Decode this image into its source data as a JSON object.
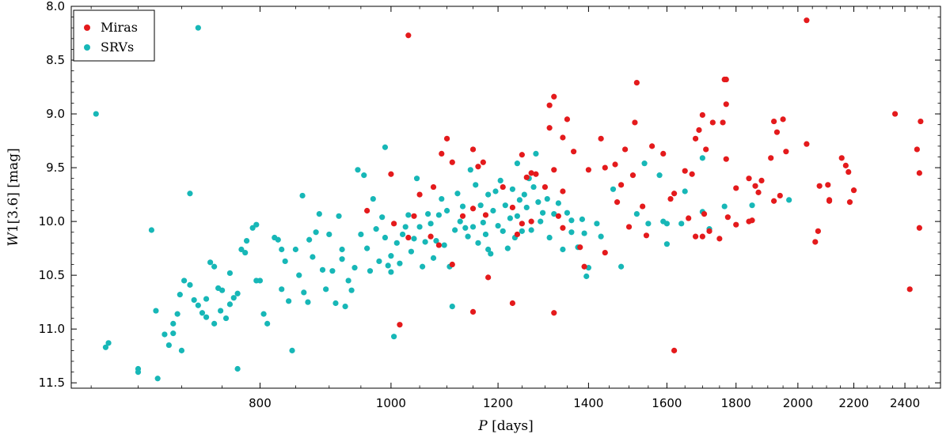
{
  "chart_data": {
    "type": "scatter",
    "x_scale": "log",
    "y_inverted": true,
    "xlim": [
      580,
      2550
    ],
    "ylim": [
      11.55,
      8.0
    ],
    "x_ticks": [
      800,
      1000,
      1200,
      1400,
      1600,
      1800,
      2000,
      2200,
      2400
    ],
    "y_ticks": [
      8.0,
      8.5,
      9.0,
      9.5,
      10.0,
      10.5,
      11.0,
      11.5
    ],
    "xlabel_italic": "P",
    "xlabel_rest": " [days]",
    "ylabel_italic": "W",
    "ylabel_rest": "1[3.6] [mag]",
    "legend": "top-left",
    "grid": false,
    "series": [
      {
        "name": "Miras",
        "color": "#e41a1c",
        "points": [
          [
            1030,
            8.27
          ],
          [
            2030,
            8.13
          ],
          [
            1520,
            8.71
          ],
          [
            1765,
            8.68
          ],
          [
            2360,
            9.0
          ],
          [
            2465,
            9.07
          ],
          [
            2450,
            9.33
          ],
          [
            2460,
            9.55
          ],
          [
            2460,
            10.06
          ],
          [
            2420,
            10.63
          ],
          [
            1310,
            8.92
          ],
          [
            1320,
            8.84
          ],
          [
            1310,
            9.13
          ],
          [
            1350,
            9.05
          ],
          [
            1340,
            9.22
          ],
          [
            1365,
            9.35
          ],
          [
            1320,
            9.52
          ],
          [
            1300,
            9.68
          ],
          [
            1330,
            9.95
          ],
          [
            1340,
            10.06
          ],
          [
            1260,
            9.59
          ],
          [
            1270,
            9.55
          ],
          [
            1250,
            9.38
          ],
          [
            1280,
            9.56
          ],
          [
            1240,
            10.12
          ],
          [
            1230,
            9.87
          ],
          [
            1250,
            10.02
          ],
          [
            1270,
            10.0
          ],
          [
            1210,
            9.68
          ],
          [
            1170,
            9.45
          ],
          [
            1150,
            9.33
          ],
          [
            1160,
            9.49
          ],
          [
            1150,
            9.88
          ],
          [
            1175,
            9.94
          ],
          [
            1180,
            10.52
          ],
          [
            1150,
            10.84
          ],
          [
            1230,
            10.76
          ],
          [
            1320,
            10.85
          ],
          [
            1100,
            9.23
          ],
          [
            1090,
            9.37
          ],
          [
            1110,
            9.45
          ],
          [
            1075,
            9.68
          ],
          [
            1050,
            9.75
          ],
          [
            1040,
            9.95
          ],
          [
            1030,
            10.15
          ],
          [
            1070,
            10.14
          ],
          [
            1085,
            10.22
          ],
          [
            1000,
            9.56
          ],
          [
            1005,
            10.02
          ],
          [
            1015,
            10.96
          ],
          [
            1110,
            10.4
          ],
          [
            1130,
            9.95
          ],
          [
            960,
            9.9
          ],
          [
            1430,
            9.23
          ],
          [
            1400,
            9.52
          ],
          [
            1440,
            9.5
          ],
          [
            1465,
            9.47
          ],
          [
            1490,
            9.33
          ],
          [
            1515,
            9.08
          ],
          [
            1510,
            9.57
          ],
          [
            1480,
            9.66
          ],
          [
            1500,
            10.05
          ],
          [
            1535,
            9.86
          ],
          [
            1545,
            10.13
          ],
          [
            1560,
            9.3
          ],
          [
            1590,
            9.37
          ],
          [
            1620,
            9.74
          ],
          [
            1610,
            9.79
          ],
          [
            1650,
            9.53
          ],
          [
            1660,
            9.97
          ],
          [
            1670,
            9.56
          ],
          [
            1680,
            9.23
          ],
          [
            1690,
            9.15
          ],
          [
            1700,
            9.01
          ],
          [
            1705,
            9.93
          ],
          [
            1710,
            9.33
          ],
          [
            1680,
            10.14
          ],
          [
            1700,
            10.14
          ],
          [
            1730,
            9.08
          ],
          [
            1760,
            9.08
          ],
          [
            1770,
            9.42
          ],
          [
            1770,
            8.91
          ],
          [
            1770,
            8.68
          ],
          [
            1775,
            9.96
          ],
          [
            1800,
            10.03
          ],
          [
            1800,
            9.69
          ],
          [
            1840,
            9.6
          ],
          [
            1840,
            10.0
          ],
          [
            1850,
            9.99
          ],
          [
            1860,
            9.67
          ],
          [
            1870,
            9.73
          ],
          [
            1880,
            9.62
          ],
          [
            1910,
            9.41
          ],
          [
            1920,
            9.81
          ],
          [
            1920,
            9.07
          ],
          [
            1930,
            9.17
          ],
          [
            1940,
            9.76
          ],
          [
            1950,
            9.05
          ],
          [
            1960,
            9.35
          ],
          [
            2030,
            9.28
          ],
          [
            2060,
            10.19
          ],
          [
            2070,
            10.09
          ],
          [
            2075,
            9.67
          ],
          [
            2105,
            9.66
          ],
          [
            2110,
            9.8
          ],
          [
            2110,
            9.81
          ],
          [
            2155,
            9.41
          ],
          [
            2170,
            9.48
          ],
          [
            2180,
            9.54
          ],
          [
            2185,
            9.82
          ],
          [
            2200,
            9.71
          ],
          [
            1620,
            11.2
          ],
          [
            1380,
            10.24
          ],
          [
            1390,
            10.42
          ],
          [
            1440,
            10.29
          ],
          [
            1750,
            10.16
          ],
          [
            1720,
            10.09
          ],
          [
            1340,
            9.72
          ],
          [
            1470,
            9.82
          ]
        ]
      },
      {
        "name": "SRVs",
        "color": "#17b7b7",
        "points": [
          [
            605,
            9.0
          ],
          [
            720,
            8.2
          ],
          [
            990,
            9.31
          ],
          [
            615,
            11.17
          ],
          [
            618,
            11.13
          ],
          [
            650,
            11.37
          ],
          [
            650,
            11.4
          ],
          [
            672,
            11.46
          ],
          [
            665,
            10.08
          ],
          [
            670,
            10.83
          ],
          [
            680,
            11.05
          ],
          [
            685,
            11.15
          ],
          [
            690,
            10.95
          ],
          [
            695,
            10.86
          ],
          [
            700,
            11.2
          ],
          [
            690,
            11.04
          ],
          [
            698,
            10.68
          ],
          [
            703,
            10.55
          ],
          [
            710,
            9.74
          ],
          [
            710,
            10.59
          ],
          [
            715,
            10.73
          ],
          [
            720,
            10.78
          ],
          [
            725,
            10.85
          ],
          [
            730,
            10.72
          ],
          [
            735,
            10.38
          ],
          [
            730,
            10.89
          ],
          [
            740,
            10.95
          ],
          [
            745,
            10.62
          ],
          [
            748,
            10.83
          ],
          [
            750,
            10.64
          ],
          [
            755,
            10.9
          ],
          [
            760,
            10.77
          ],
          [
            765,
            10.71
          ],
          [
            770,
            10.67
          ],
          [
            770,
            11.37
          ],
          [
            775,
            10.26
          ],
          [
            780,
            10.29
          ],
          [
            782,
            10.18
          ],
          [
            790,
            10.06
          ],
          [
            795,
            10.03
          ],
          [
            795,
            10.55
          ],
          [
            800,
            10.55
          ],
          [
            805,
            10.86
          ],
          [
            810,
            10.95
          ],
          [
            820,
            10.15
          ],
          [
            825,
            10.17
          ],
          [
            830,
            10.26
          ],
          [
            835,
            10.37
          ],
          [
            840,
            10.74
          ],
          [
            845,
            11.2
          ],
          [
            850,
            10.26
          ],
          [
            855,
            10.5
          ],
          [
            860,
            9.76
          ],
          [
            862,
            10.66
          ],
          [
            868,
            10.75
          ],
          [
            875,
            10.33
          ],
          [
            880,
            10.1
          ],
          [
            885,
            9.93
          ],
          [
            890,
            10.45
          ],
          [
            895,
            10.63
          ],
          [
            900,
            10.12
          ],
          [
            905,
            10.46
          ],
          [
            910,
            10.76
          ],
          [
            915,
            9.95
          ],
          [
            920,
            10.35
          ],
          [
            925,
            10.79
          ],
          [
            930,
            10.55
          ],
          [
            935,
            10.64
          ],
          [
            940,
            10.43
          ],
          [
            945,
            9.52
          ],
          [
            950,
            10.12
          ],
          [
            955,
            9.57
          ],
          [
            960,
            10.25
          ],
          [
            965,
            10.46
          ],
          [
            970,
            9.79
          ],
          [
            975,
            10.07
          ],
          [
            980,
            10.37
          ],
          [
            985,
            9.96
          ],
          [
            990,
            10.15
          ],
          [
            995,
            10.41
          ],
          [
            1000,
            10.32
          ],
          [
            1005,
            11.07
          ],
          [
            1010,
            10.2
          ],
          [
            1015,
            10.39
          ],
          [
            1020,
            10.12
          ],
          [
            1025,
            10.05
          ],
          [
            1030,
            9.94
          ],
          [
            1035,
            10.28
          ],
          [
            1040,
            10.16
          ],
          [
            1045,
            9.6
          ],
          [
            1050,
            10.05
          ],
          [
            1055,
            10.42
          ],
          [
            1060,
            10.19
          ],
          [
            1065,
            9.93
          ],
          [
            1070,
            10.02
          ],
          [
            1075,
            10.34
          ],
          [
            1080,
            10.18
          ],
          [
            1085,
            9.94
          ],
          [
            1090,
            9.79
          ],
          [
            1095,
            10.22
          ],
          [
            1100,
            9.9
          ],
          [
            1105,
            10.42
          ],
          [
            1110,
            10.79
          ],
          [
            1115,
            10.08
          ],
          [
            1120,
            9.74
          ],
          [
            1125,
            10.0
          ],
          [
            1130,
            9.86
          ],
          [
            1135,
            10.06
          ],
          [
            1140,
            10.14
          ],
          [
            1145,
            9.52
          ],
          [
            1150,
            10.05
          ],
          [
            1155,
            9.66
          ],
          [
            1160,
            10.2
          ],
          [
            1165,
            9.85
          ],
          [
            1170,
            10.01
          ],
          [
            1175,
            10.12
          ],
          [
            1180,
            9.75
          ],
          [
            1185,
            10.3
          ],
          [
            1190,
            9.9
          ],
          [
            1195,
            9.72
          ],
          [
            1200,
            10.04
          ],
          [
            1205,
            9.62
          ],
          [
            1210,
            10.09
          ],
          [
            1215,
            9.85
          ],
          [
            1220,
            10.25
          ],
          [
            1225,
            9.97
          ],
          [
            1230,
            9.7
          ],
          [
            1235,
            10.15
          ],
          [
            1240,
            9.95
          ],
          [
            1245,
            9.8
          ],
          [
            1250,
            10.09
          ],
          [
            1255,
            9.75
          ],
          [
            1260,
            9.87
          ],
          [
            1265,
            9.6
          ],
          [
            1270,
            10.08
          ],
          [
            1275,
            9.68
          ],
          [
            1280,
            9.37
          ],
          [
            1285,
            9.82
          ],
          [
            1290,
            10.0
          ],
          [
            1295,
            9.92
          ],
          [
            1305,
            9.79
          ],
          [
            1310,
            10.15
          ],
          [
            1320,
            9.93
          ],
          [
            1330,
            9.83
          ],
          [
            1340,
            10.26
          ],
          [
            1350,
            9.92
          ],
          [
            1360,
            9.99
          ],
          [
            1360,
            10.1
          ],
          [
            1375,
            10.24
          ],
          [
            1385,
            9.98
          ],
          [
            1390,
            10.11
          ],
          [
            1395,
            10.51
          ],
          [
            1400,
            10.43
          ],
          [
            1420,
            10.02
          ],
          [
            1430,
            10.14
          ],
          [
            1460,
            9.7
          ],
          [
            1480,
            10.42
          ],
          [
            1520,
            9.93
          ],
          [
            1540,
            9.46
          ],
          [
            1580,
            9.57
          ],
          [
            1590,
            10.0
          ],
          [
            1600,
            10.21
          ],
          [
            1640,
            10.02
          ],
          [
            1650,
            9.72
          ],
          [
            1700,
            9.91
          ],
          [
            1700,
            9.41
          ],
          [
            1720,
            10.07
          ],
          [
            1765,
            9.86
          ],
          [
            1850,
            9.85
          ],
          [
            1970,
            9.8
          ],
          [
            1600,
            10.02
          ],
          [
            1550,
            10.02
          ],
          [
            1240,
            9.46
          ],
          [
            1180,
            10.26
          ],
          [
            1000,
            10.47
          ],
          [
            920,
            10.26
          ],
          [
            870,
            10.17
          ],
          [
            830,
            10.63
          ],
          [
            760,
            10.48
          ],
          [
            740,
            10.42
          ]
        ]
      }
    ]
  }
}
